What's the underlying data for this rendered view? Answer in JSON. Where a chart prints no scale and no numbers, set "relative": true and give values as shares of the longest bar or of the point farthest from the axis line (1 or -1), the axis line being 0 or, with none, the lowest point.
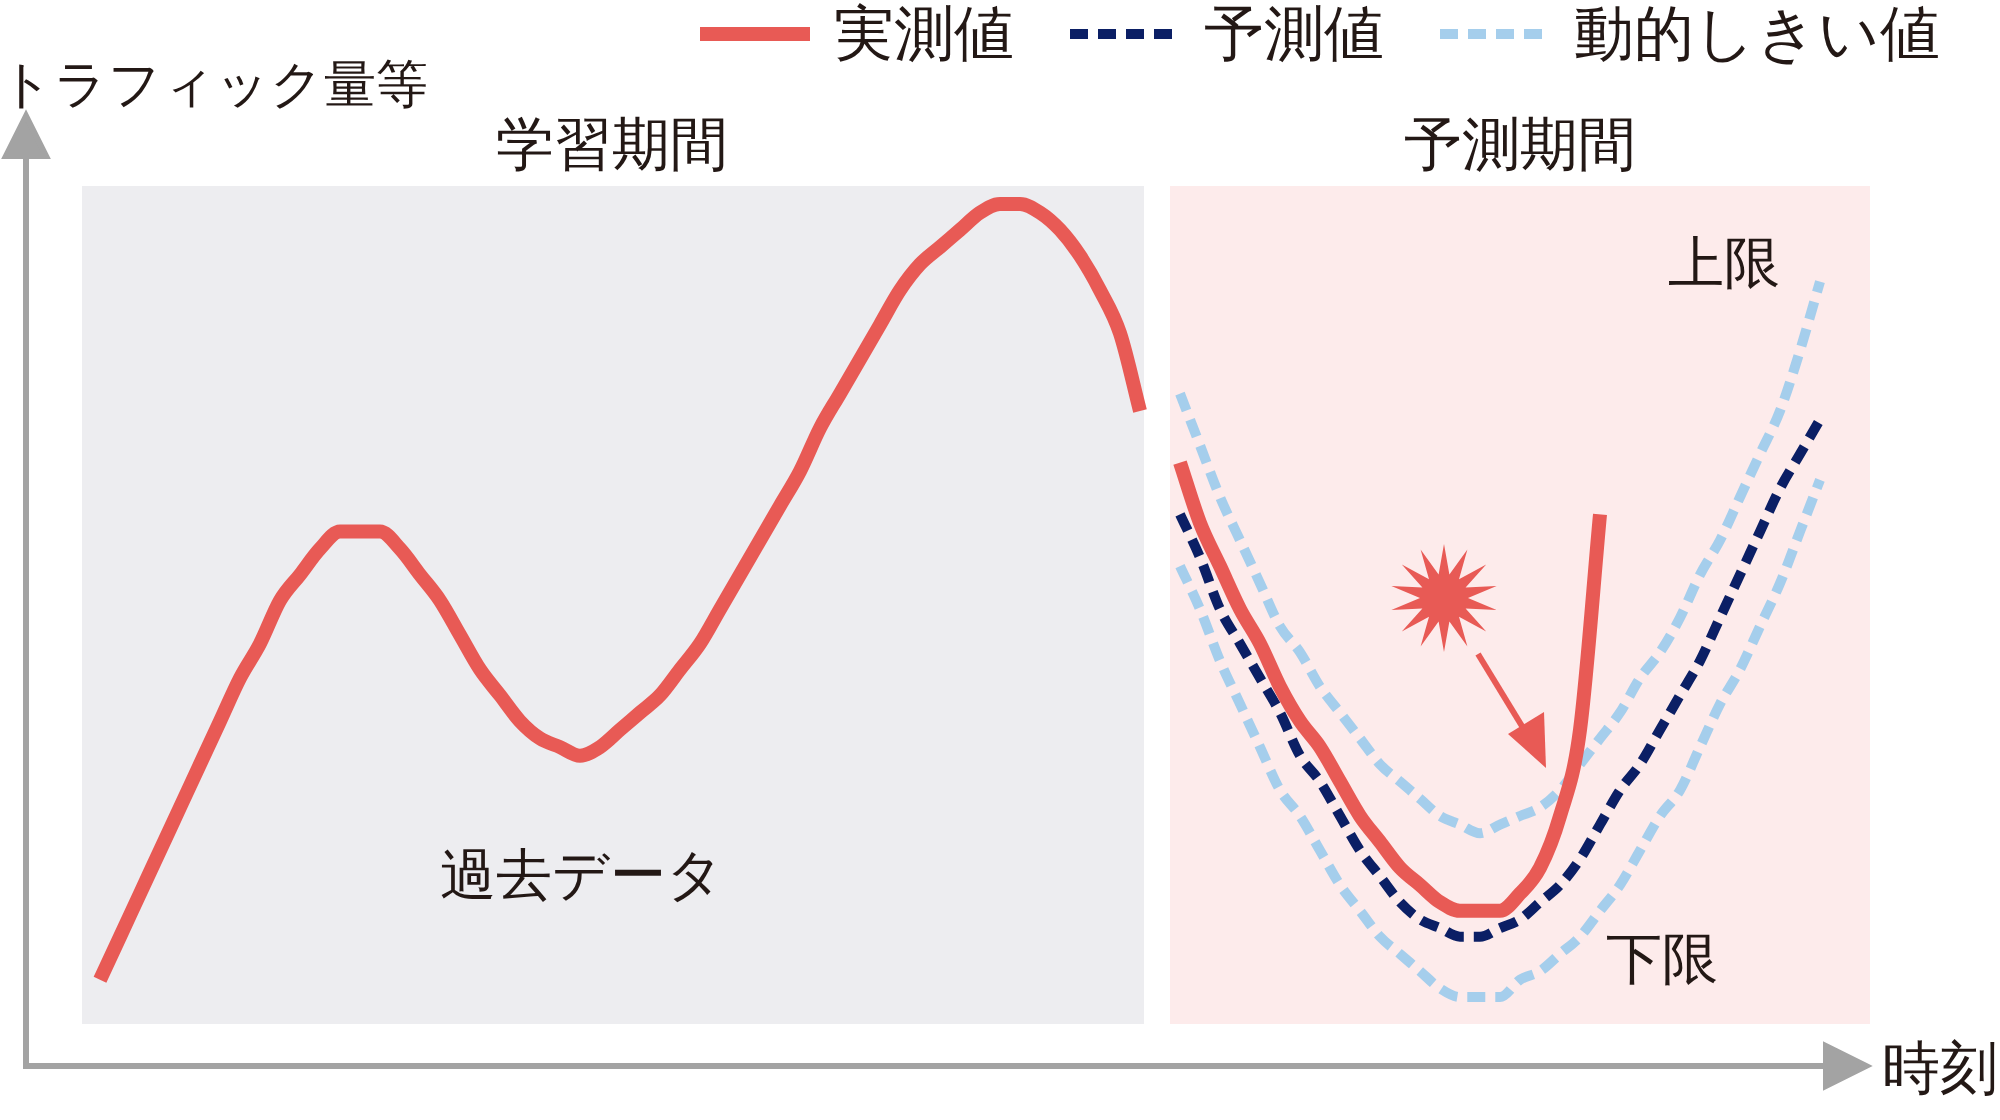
{
  "chart_data": {
    "type": "line",
    "relative": true,
    "xlabel": "時刻",
    "ylabel": "トラフィック量等",
    "legend": "top right",
    "categories": [
      null,
      null,
      null,
      null,
      null,
      null,
      null,
      null,
      null,
      null,
      null,
      null,
      null,
      null,
      null,
      null,
      null,
      null,
      null,
      null,
      null,
      null,
      null,
      null,
      null,
      null,
      null,
      null,
      null,
      null,
      null,
      null,
      null,
      null,
      null,
      null,
      null,
      null,
      null,
      null,
      null,
      null,
      null,
      null,
      null,
      null,
      null,
      null,
      null,
      null,
      null,
      null,
      null,
      null,
      null,
      null,
      null,
      null,
      null,
      null,
      null,
      null,
      null,
      null,
      null,
      null,
      null,
      null,
      null,
      null,
      null,
      null,
      null,
      null,
      null,
      null,
      null,
      null,
      null,
      null,
      null,
      null,
      null,
      null,
      null,
      null,
      null
    ],
    "series": [
      {
        "name": "実測値",
        "color": "#e85a55",
        "line_style": "solid",
        "values": [
          0.1,
          0.15,
          0.2,
          0.25,
          0.3,
          0.35,
          0.4,
          0.45,
          0.49,
          0.54,
          0.57,
          0.6,
          0.62,
          0.62,
          0.62,
          0.6,
          0.57,
          0.54,
          0.5,
          0.46,
          0.43,
          0.4,
          0.38,
          0.37,
          0.36,
          0.37,
          0.39,
          0.41,
          0.43,
          0.46,
          0.49,
          0.53,
          0.57,
          0.61,
          0.65,
          0.69,
          0.74,
          0.78,
          0.82,
          0.86,
          0.9,
          0.93,
          0.95,
          0.97,
          0.99,
          1.0,
          1.0,
          0.99,
          0.97,
          0.94,
          0.9,
          0.85,
          0.76,
          null,
          0.7,
          0.63,
          0.58,
          0.53,
          0.49,
          0.44,
          0.4,
          0.37,
          0.33,
          0.29,
          0.26,
          0.23,
          0.21,
          0.19,
          0.18,
          0.18,
          0.18,
          0.2,
          0.23,
          0.29,
          0.39,
          0.64,
          null,
          null,
          null,
          null,
          null,
          null,
          null,
          null,
          null,
          null,
          null
        ]
      },
      {
        "name": "予測値",
        "color": "#0b1f65",
        "line_style": "dashed",
        "values": [
          null,
          null,
          null,
          null,
          null,
          null,
          null,
          null,
          null,
          null,
          null,
          null,
          null,
          null,
          null,
          null,
          null,
          null,
          null,
          null,
          null,
          null,
          null,
          null,
          null,
          null,
          null,
          null,
          null,
          null,
          null,
          null,
          null,
          null,
          null,
          null,
          null,
          null,
          null,
          null,
          null,
          null,
          null,
          null,
          null,
          null,
          null,
          null,
          null,
          null,
          null,
          null,
          null,
          null,
          0.64,
          0.59,
          0.53,
          0.49,
          0.45,
          0.41,
          0.36,
          0.33,
          0.29,
          0.25,
          0.22,
          0.19,
          0.17,
          0.16,
          0.15,
          0.15,
          0.16,
          0.17,
          0.19,
          0.21,
          0.24,
          0.28,
          0.32,
          0.35,
          0.39,
          0.43,
          0.47,
          0.52,
          0.57,
          0.62,
          0.67,
          0.71,
          0.75
        ]
      },
      {
        "name": "動的しきい値",
        "color": "#a5ceec",
        "line_style": "dashed",
        "values": [
          null,
          null,
          null,
          null,
          null,
          null,
          null,
          null,
          null,
          null,
          null,
          null,
          null,
          null,
          null,
          null,
          null,
          null,
          null,
          null,
          null,
          null,
          null,
          null,
          null,
          null,
          null,
          null,
          null,
          null,
          null,
          null,
          null,
          null,
          null,
          null,
          null,
          null,
          null,
          null,
          null,
          null,
          null,
          null,
          null,
          null,
          null,
          null,
          null,
          null,
          null,
          null,
          null,
          null,
          0.78,
          0.72,
          0.66,
          0.61,
          0.56,
          0.51,
          0.48,
          0.44,
          0.41,
          0.38,
          0.35,
          0.33,
          0.31,
          0.29,
          0.28,
          0.27,
          0.28,
          0.29,
          0.3,
          0.32,
          0.35,
          0.38,
          0.41,
          0.45,
          0.48,
          0.52,
          0.57,
          0.61,
          0.66,
          0.71,
          0.76,
          0.83,
          0.91
        ]
      },
      {
        "color": "#a5ceec",
        "line_style": "dashed",
        "values": [
          null,
          null,
          null,
          null,
          null,
          null,
          null,
          null,
          null,
          null,
          null,
          null,
          null,
          null,
          null,
          null,
          null,
          null,
          null,
          null,
          null,
          null,
          null,
          null,
          null,
          null,
          null,
          null,
          null,
          null,
          null,
          null,
          null,
          null,
          null,
          null,
          null,
          null,
          null,
          null,
          null,
          null,
          null,
          null,
          null,
          null,
          null,
          null,
          null,
          null,
          null,
          null,
          null,
          null,
          0.58,
          0.53,
          0.47,
          0.42,
          0.37,
          0.32,
          0.29,
          0.25,
          0.21,
          0.18,
          0.15,
          0.13,
          0.11,
          0.09,
          0.08,
          0.08,
          0.08,
          0.1,
          0.11,
          0.13,
          0.15,
          0.18,
          0.21,
          0.25,
          0.29,
          0.32,
          0.37,
          0.42,
          0.46,
          0.51,
          0.56,
          0.62,
          0.68
        ]
      }
    ],
    "annotations": [
      "学習期間",
      "予測期間",
      "過去データ",
      "上限",
      "下限"
    ]
  }
}
